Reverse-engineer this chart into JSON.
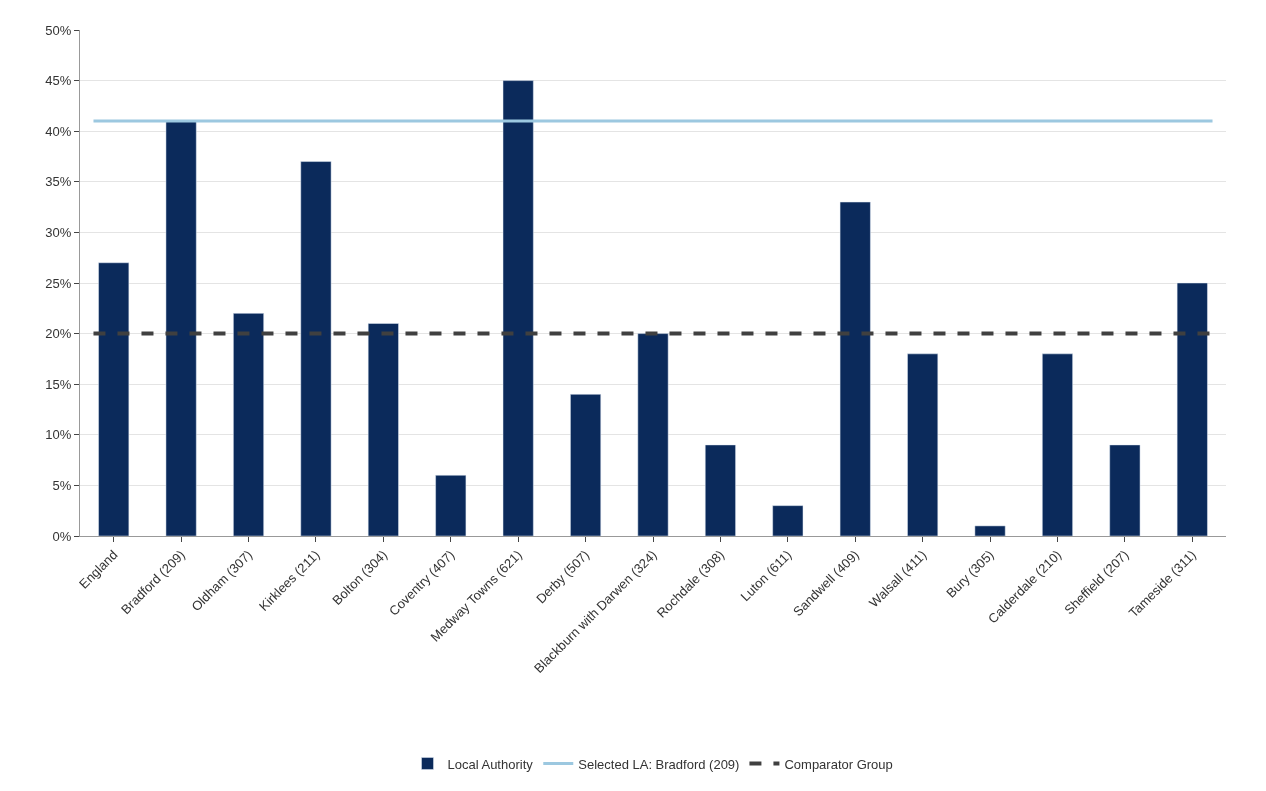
{
  "chart_data": {
    "type": "bar",
    "categories": [
      "England",
      "Bradford (209)",
      "Oldham (307)",
      "Kirklees (211)",
      "Bolton (304)",
      "Coventry (407)",
      "Medway Towns (621)",
      "Derby (507)",
      "Blackburn with Darwen (324)",
      "Rochdale (308)",
      "Luton (611)",
      "Sandwell (409)",
      "Walsall (411)",
      "Bury (305)",
      "Calderdale (210)",
      "Sheffield (207)",
      "Tameside (311)"
    ],
    "series": [
      {
        "name": "Local Authority",
        "color": "#0b2a5b",
        "values": [
          27,
          41,
          22,
          37,
          21,
          6,
          45,
          14,
          20,
          9,
          3,
          33,
          18,
          1,
          18,
          9,
          25
        ]
      }
    ],
    "ref_lines": [
      {
        "axis": "y",
        "value": 41,
        "label": "Selected LA: Bradford (209)",
        "color": "#9cc8e0",
        "line_style": "solid"
      },
      {
        "axis": "y",
        "value": 20,
        "label": "Comparator Group",
        "color": "#404040",
        "line_style": "dashed"
      }
    ],
    "ylim": [
      0,
      50
    ],
    "yticks": [
      {
        "value": 0,
        "label": "0%"
      },
      {
        "value": 5,
        "label": "5%"
      },
      {
        "value": 10,
        "label": "10%"
      },
      {
        "value": 15,
        "label": "15%"
      },
      {
        "value": 20,
        "label": "20%"
      },
      {
        "value": 25,
        "label": "25%"
      },
      {
        "value": 30,
        "label": "30%"
      },
      {
        "value": 35,
        "label": "35%"
      },
      {
        "value": 40,
        "label": "40%"
      },
      {
        "value": 45,
        "label": "45%"
      },
      {
        "value": 50,
        "label": "50%"
      }
    ],
    "grid": "y",
    "legend": "bottom"
  }
}
